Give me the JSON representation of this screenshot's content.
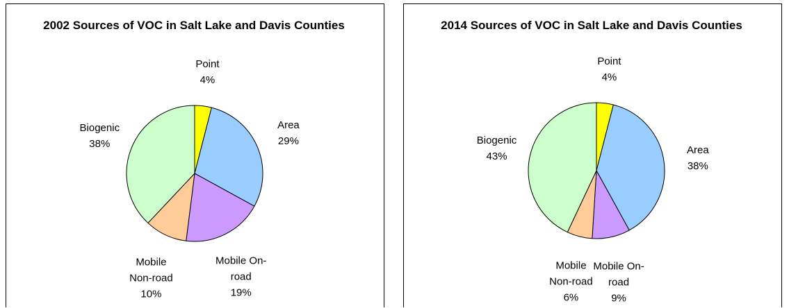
{
  "chart_data": [
    {
      "type": "pie",
      "title": "2002 Sources of VOC in Salt Lake and Davis Counties",
      "categories": [
        "Point",
        "Area",
        "Mobile On-road",
        "Mobile Non-road",
        "Biogenic"
      ],
      "values": [
        4,
        29,
        19,
        10,
        38
      ],
      "value_labels": [
        "4%",
        "29%",
        "19%",
        "10%",
        "38%"
      ],
      "colors": [
        "#ffff00",
        "#99ccff",
        "#cc99ff",
        "#ffcc99",
        "#ccffcc"
      ]
    },
    {
      "type": "pie",
      "title": "2014 Sources of VOC in Salt Lake and Davis Counties",
      "categories": [
        "Point",
        "Area",
        "Mobile On-road",
        "Mobile Non-road",
        "Biogenic"
      ],
      "values": [
        4,
        38,
        9,
        6,
        43
      ],
      "value_labels": [
        "4%",
        "38%",
        "9%",
        "6%",
        "43%"
      ],
      "colors": [
        "#ffff00",
        "#99ccff",
        "#cc99ff",
        "#ffcc99",
        "#ccffcc"
      ]
    }
  ]
}
